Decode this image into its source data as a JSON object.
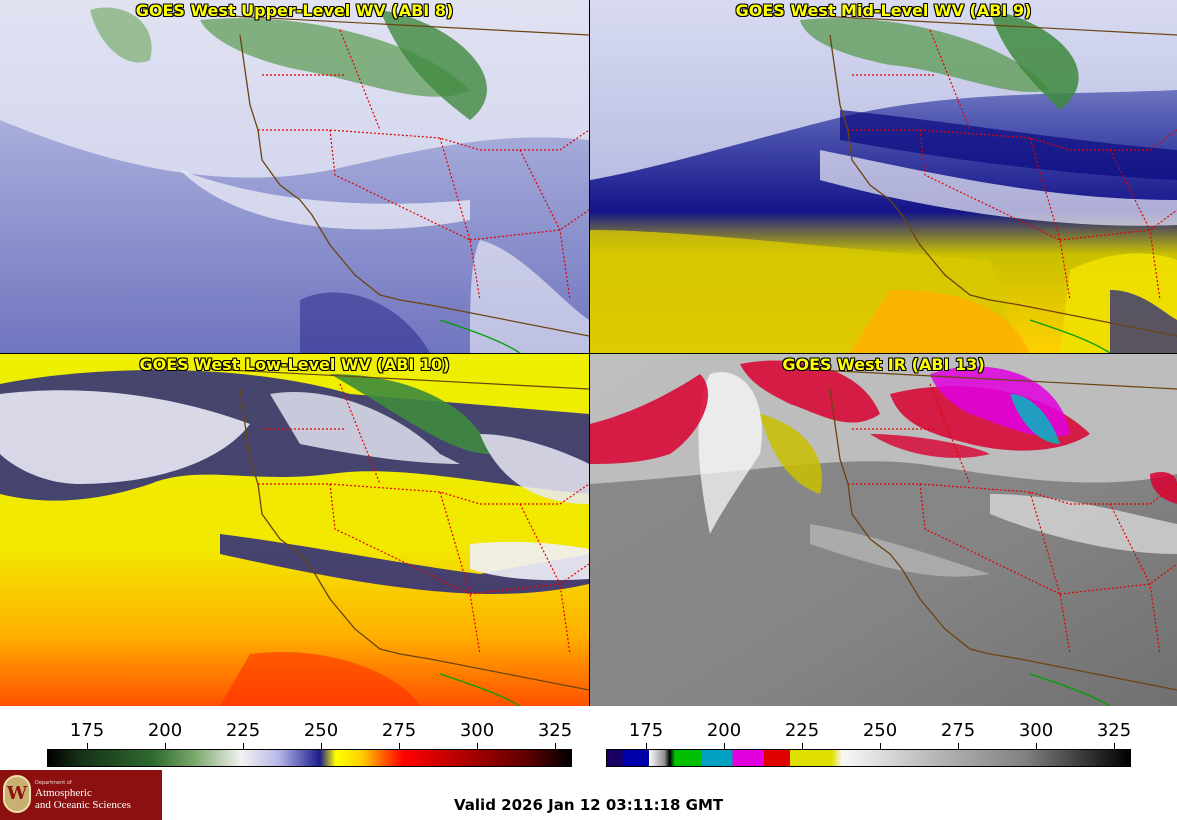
{
  "panels": [
    {
      "id": "upper",
      "title": "GOES West Upper-Level WV (ABI 8)"
    },
    {
      "id": "mid",
      "title": "GOES West Mid-Level WV (ABI 9)"
    },
    {
      "id": "low",
      "title": "GOES West Low-Level WV (ABI 10)"
    },
    {
      "id": "ir",
      "title": "GOES West IR (ABI 13)"
    }
  ],
  "scale_left": {
    "ticks": [
      "175",
      "200",
      "225",
      "250",
      "275",
      "300",
      "325"
    ]
  },
  "scale_right": {
    "ticks": [
      "175",
      "200",
      "225",
      "250",
      "275",
      "300",
      "325"
    ]
  },
  "logo": {
    "dept": "Department of",
    "line1": "Atmospheric",
    "line2": "and Oceanic Sciences",
    "seal_letter": "W"
  },
  "valid_time": "Valid 2026 Jan 12 03:11:18 GMT",
  "colors": {
    "border_line": "#5a3a10",
    "state_line": "#e00000",
    "mexico_coast": "#00a000",
    "title_text": "#ffff00"
  }
}
